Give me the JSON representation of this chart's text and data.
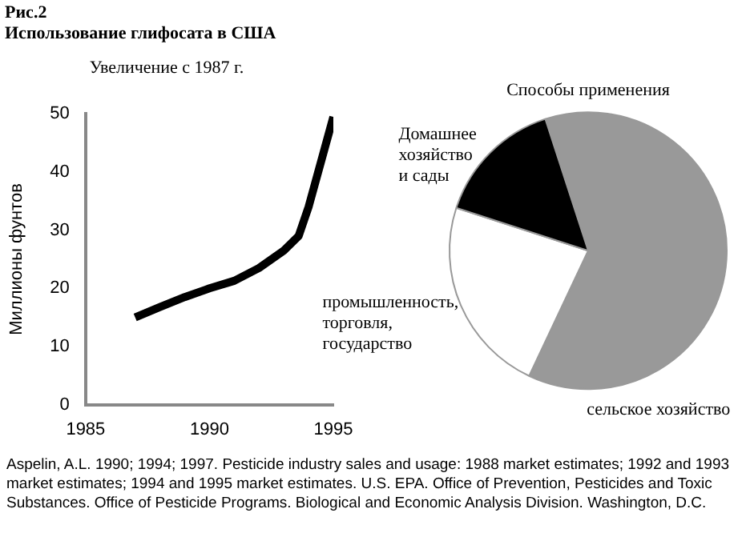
{
  "chart_data": [
    {
      "type": "line",
      "title": "Увеличение с 1987 г.",
      "ylabel": "Миллионы фунтов",
      "annotations": [
        "Рис.2",
        "Использование глифосата в США"
      ],
      "x": [
        1987,
        1988,
        1989,
        1990,
        1991,
        1992,
        1993,
        1993.6,
        1994,
        1995
      ],
      "series": [
        {
          "color": "#000000",
          "values": [
            15,
            16.8,
            18.5,
            20,
            21.3,
            23.5,
            26.5,
            29,
            34,
            49.5
          ]
        }
      ],
      "xlim": [
        1985,
        1995
      ],
      "xticks": [
        1985,
        1990,
        1995
      ],
      "ylim": [
        0,
        50
      ],
      "yticks": [
        0,
        10,
        20,
        30,
        40,
        50
      ],
      "grid": false,
      "legend": false,
      "marker": "none",
      "line_style": "solid"
    },
    {
      "type": "pie",
      "title": "Способы применения",
      "categories": [
        "сельское хозяйство",
        "промышленность, торговля, государство",
        "Домашнее хозяйство и сады"
      ],
      "values": [
        62,
        23,
        15
      ],
      "colors": [
        "#999999",
        "#ffffff",
        "#000000"
      ],
      "legend": false,
      "annotations": [
        "Aspelin, A.L. 1990; 1994; 1997. Pesticide industry sales and usage: 1988 market estimates; 1992 and 1993 market estimates; 1994 and 1995 market estimates. U.S. EPA. Office of Prevention, Pesticides and Toxic Substances. Office of Pesticide Programs. Biological and Economic Analysis Division. Washington, D.C."
      ]
    }
  ]
}
